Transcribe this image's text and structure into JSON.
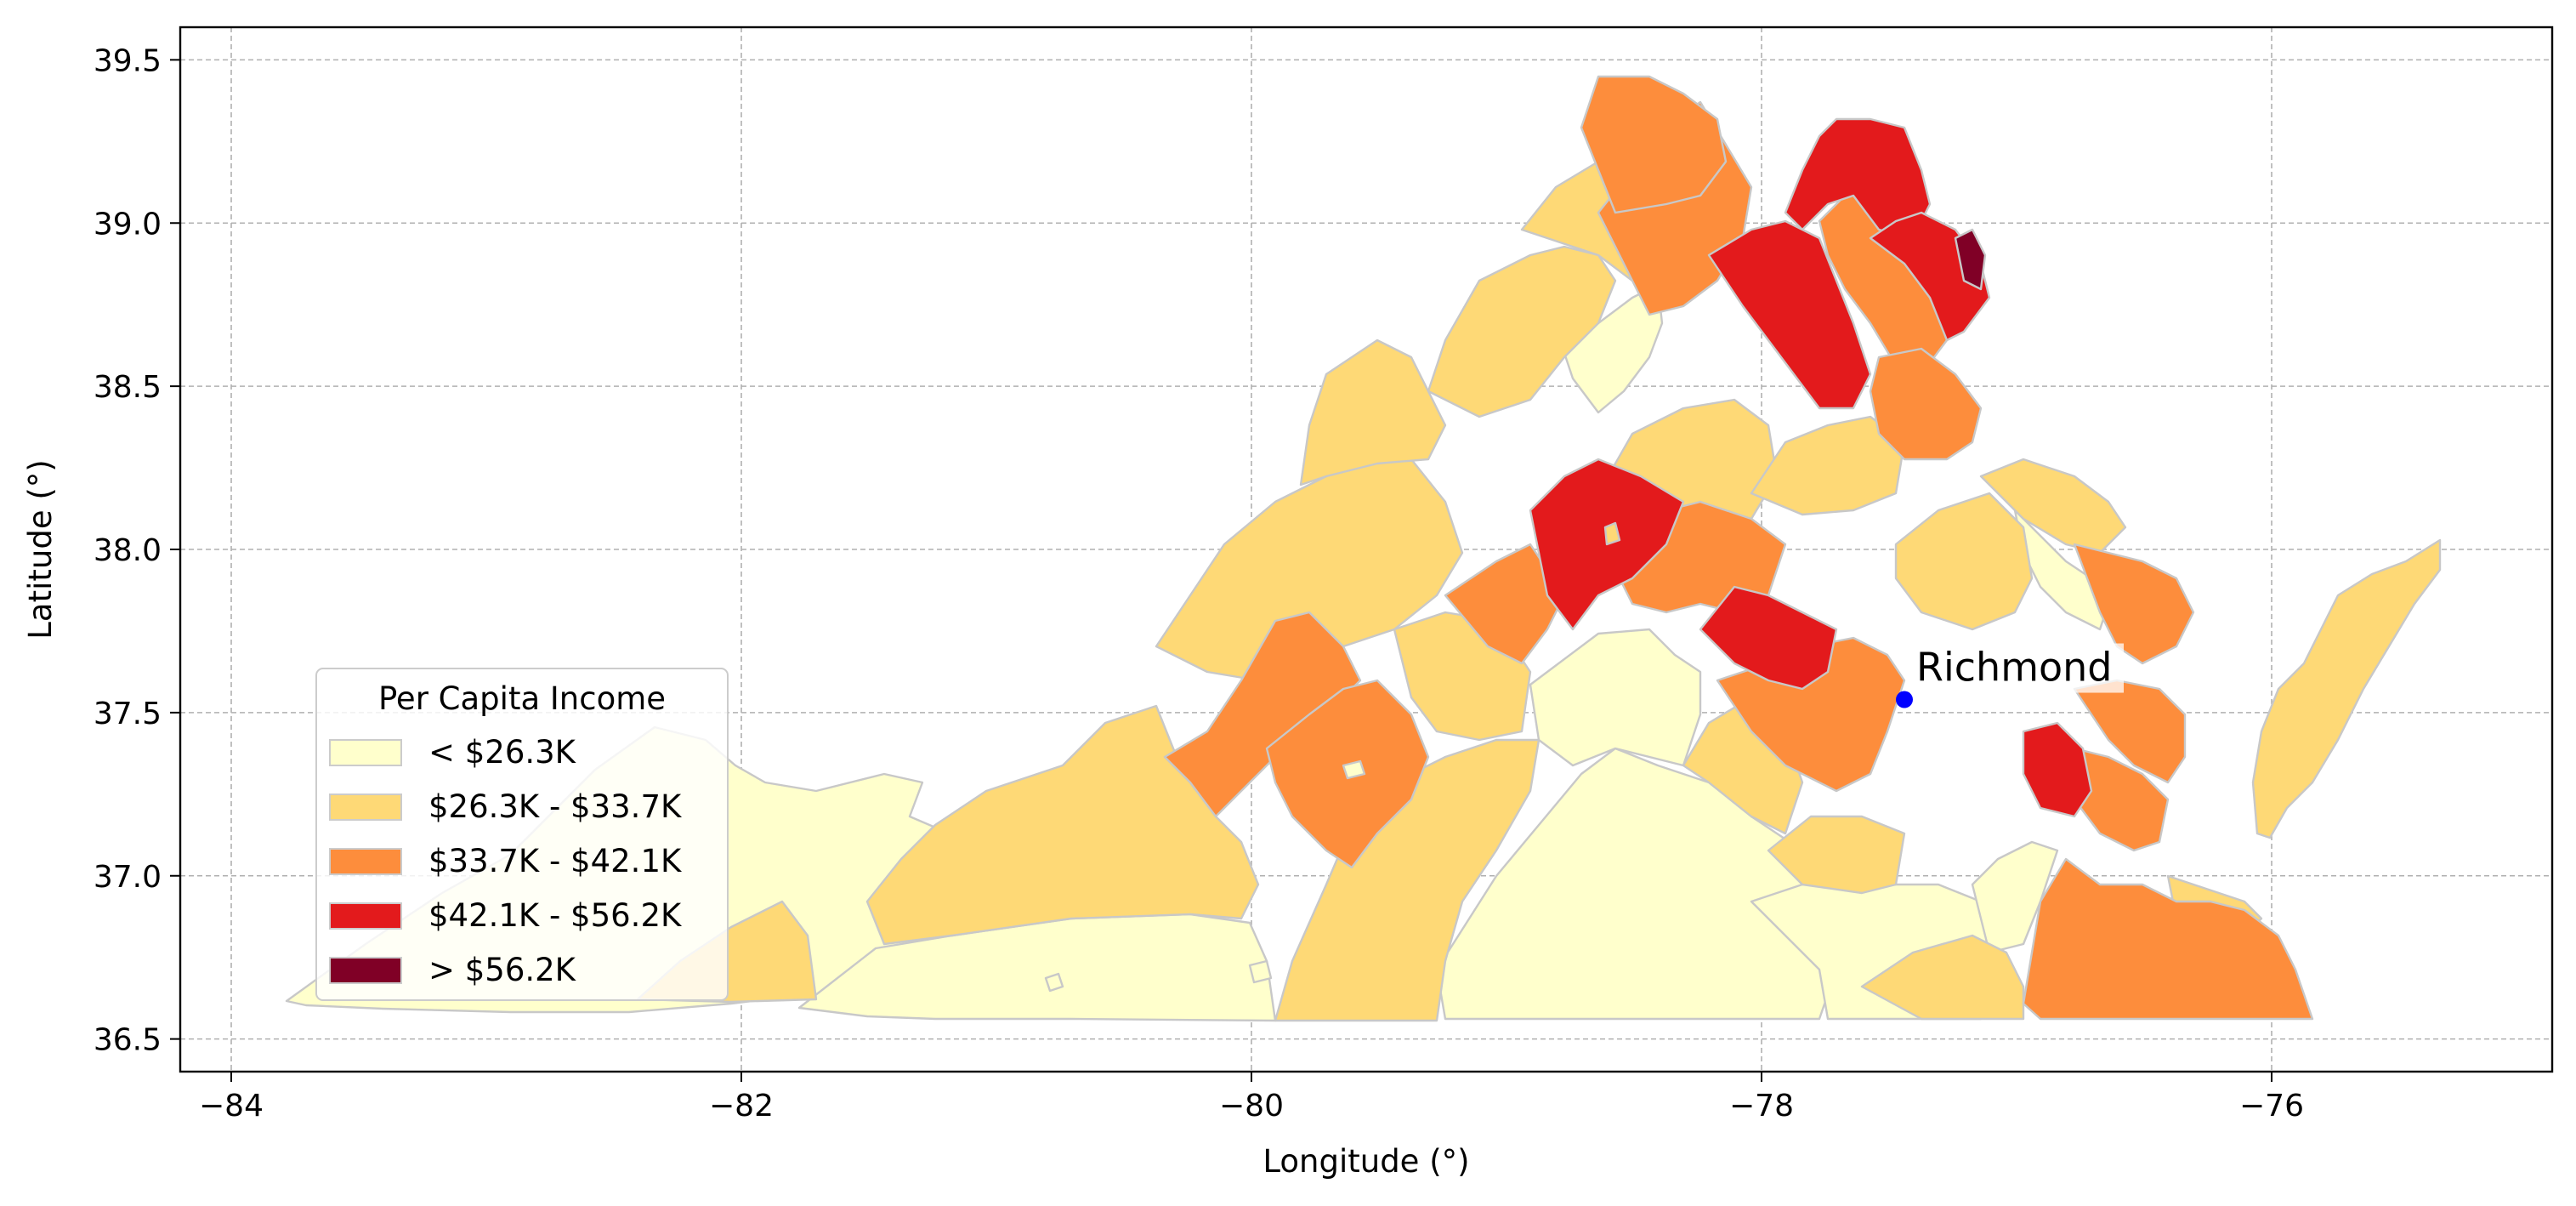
{
  "chart_data": {
    "type": "choropleth",
    "xlabel": "Longitude (°)",
    "ylabel": "Latitude (°)",
    "xlim": [
      -84.2,
      -74.9
    ],
    "ylim": [
      36.4,
      39.6
    ],
    "x_ticks": [
      -84,
      -82,
      -80,
      -78,
      -76
    ],
    "x_tick_labels": [
      "−84",
      "−82",
      "−80",
      "−78",
      "−76"
    ],
    "y_ticks": [
      36.5,
      37.0,
      37.5,
      38.0,
      38.5,
      39.0,
      39.5
    ],
    "y_tick_labels": [
      "36.5",
      "37.0",
      "37.5",
      "38.0",
      "38.5",
      "39.0",
      "39.5"
    ],
    "grid": true,
    "legend": {
      "title": "Per Capita Income",
      "placement": "lower-left",
      "entries": [
        {
          "label": "< $26.3K",
          "color": "#ffffcc"
        },
        {
          "label": "$26.3K - $33.7K",
          "color": "#fed976"
        },
        {
          "label": "$33.7K - $42.1K",
          "color": "#fd8d3c"
        },
        {
          "label": "$42.1K - $56.2K",
          "color": "#e31a1c"
        },
        {
          "label": "> $56.2K",
          "color": "#800026"
        }
      ]
    },
    "marker": {
      "label": "Richmond",
      "lon": -77.44,
      "lat": 37.54,
      "color": "#0000ff"
    },
    "boundary_color": "#cccccc"
  }
}
